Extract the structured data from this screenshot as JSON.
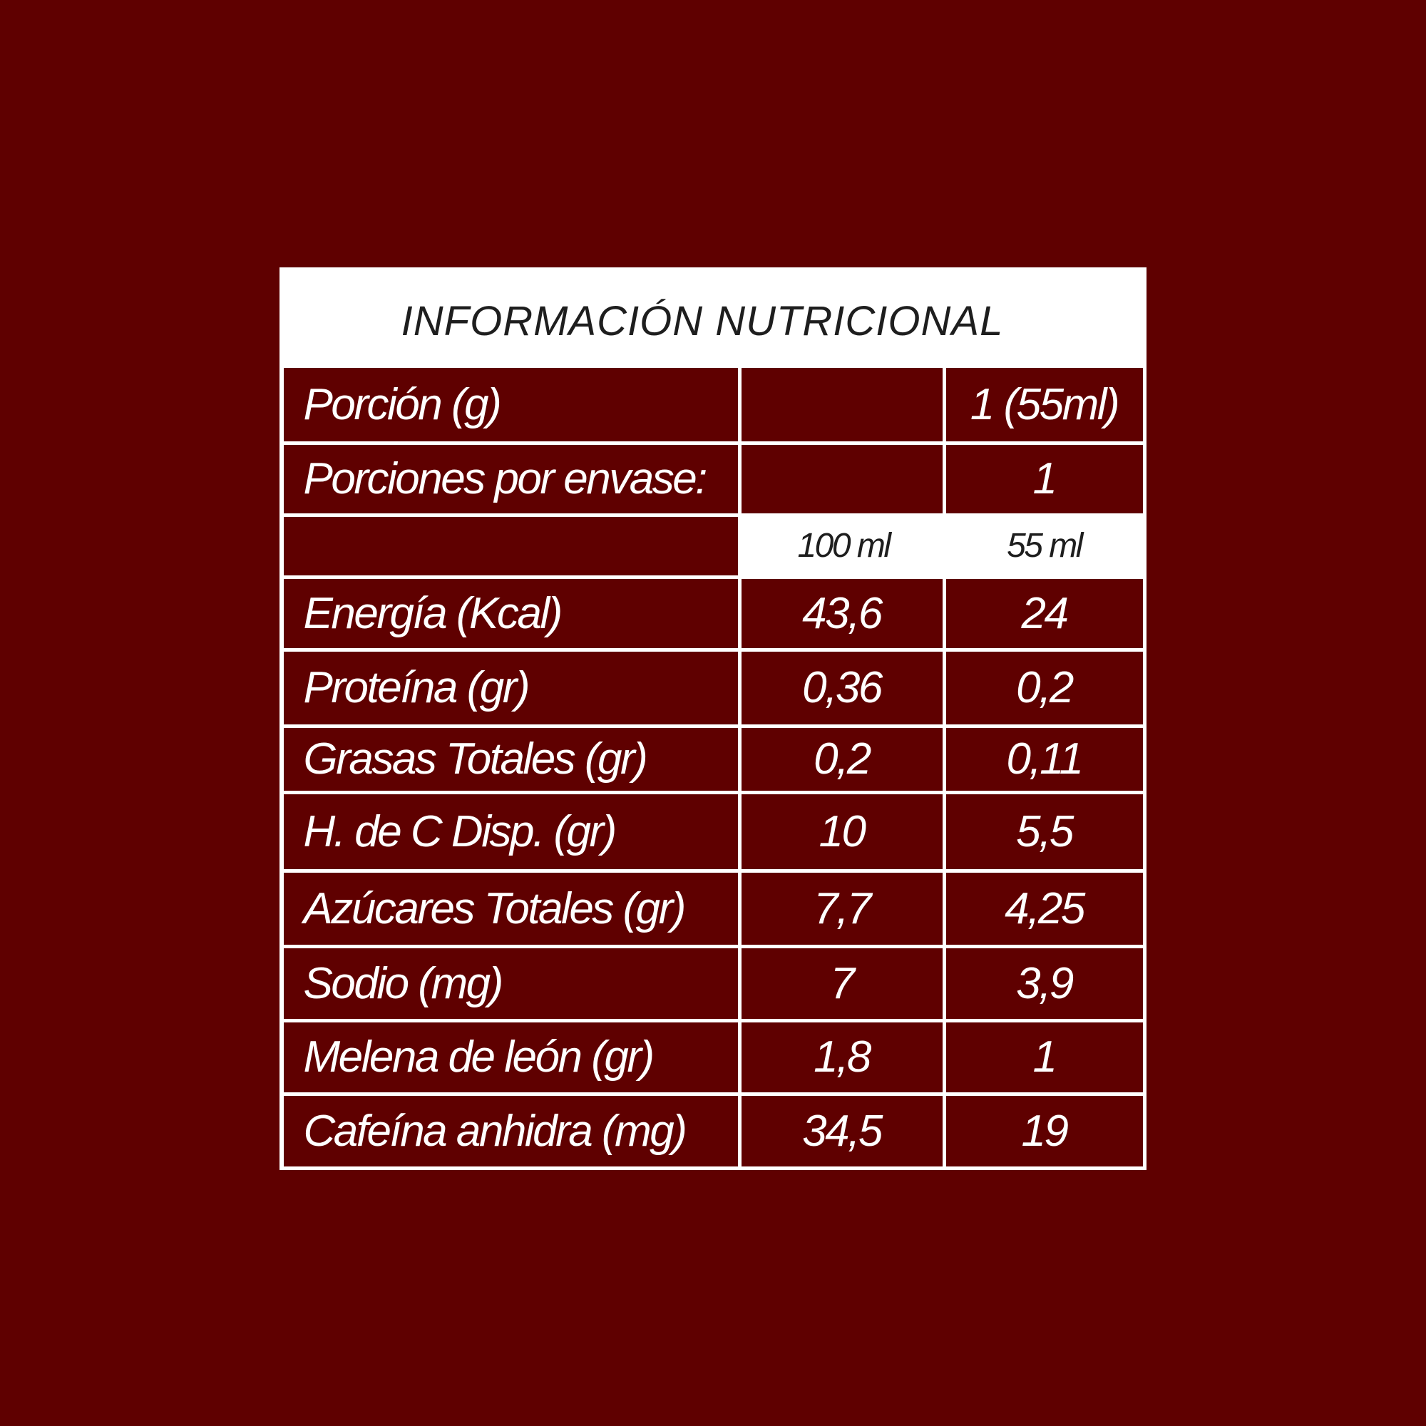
{
  "title": "INFORMACIÓN NUTRICIONAL",
  "colors": {
    "background": "#5f0000",
    "panel": "#ffffff",
    "text_dark": "#1e1e1e"
  },
  "rows": [
    {
      "label": "Porción (g)",
      "col1": "",
      "col2": "1 (55ml)"
    },
    {
      "label": "Porciones por envase:",
      "col1": "",
      "col2": "1"
    },
    {
      "label": "",
      "col1": "100 ml",
      "col2": "55 ml",
      "header": true
    },
    {
      "label": "Energía (Kcal)",
      "col1": "43,6",
      "col2": "24"
    },
    {
      "label": "Proteína (gr)",
      "col1": "0,36",
      "col2": "0,2"
    },
    {
      "label": "Grasas Totales (gr)",
      "col1": "0,2",
      "col2": "0,11"
    },
    {
      "label": "H. de C Disp. (gr)",
      "col1": "10",
      "col2": "5,5"
    },
    {
      "label": "Azúcares Totales (gr)",
      "col1": "7,7",
      "col2": "4,25"
    },
    {
      "label": "Sodio (mg)",
      "col1": "7",
      "col2": "3,9"
    },
    {
      "label": "Melena de león (gr)",
      "col1": "1,8",
      "col2": "1"
    },
    {
      "label": "Cafeína anhidra (mg)",
      "col1": "34,5",
      "col2": "19"
    }
  ]
}
